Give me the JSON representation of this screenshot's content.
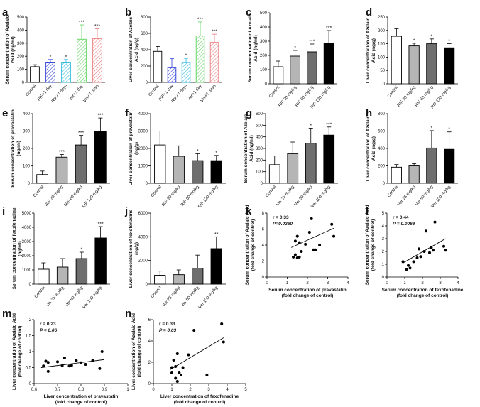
{
  "figure": {
    "width": 676,
    "height": 573
  },
  "chart_data": [
    {
      "id": "a",
      "type": "bar",
      "ylabel": "Serum concentration of Azelaic Acid (ng/ml)",
      "categories": [
        "Control",
        "RIF+1 day",
        "RIF+7 days",
        "Ver+1 day",
        "Ver+7 days"
      ],
      "values": [
        120,
        155,
        155,
        330,
        335
      ],
      "errors": [
        15,
        20,
        20,
        110,
        75
      ],
      "significance": [
        "",
        "*",
        "*",
        "***",
        "***"
      ],
      "styles": [
        "white",
        "blue-hatch",
        "cyan-hatch",
        "green-hatch",
        "red-hatch"
      ],
      "ylim": [
        0,
        500
      ],
      "yticks": [
        0,
        100,
        200,
        300,
        400,
        500
      ]
    },
    {
      "id": "b",
      "type": "bar",
      "ylabel": "Liver concentration of Azelaic Acid (ng/g)",
      "categories": [
        "Control",
        "RIF+1 day",
        "RIF+7 days",
        "Ver+1 day",
        "Ver+7 days"
      ],
      "values": [
        380,
        180,
        245,
        570,
        490
      ],
      "errors": [
        60,
        110,
        50,
        170,
        100
      ],
      "significance": [
        "",
        "",
        "*",
        "***",
        "***"
      ],
      "styles": [
        "white",
        "blue-hatch",
        "cyan-hatch",
        "green-hatch",
        "red-hatch"
      ],
      "ylim": [
        0,
        800
      ],
      "yticks": [
        0,
        200,
        400,
        600,
        800
      ]
    },
    {
      "id": "c",
      "type": "bar",
      "ylabel": "Serum concentration of Azelaic Acid (ng/ml)",
      "categories": [
        "Control",
        "RIF 30 mg/kg",
        "RIF 60 mg/kg",
        "RIF 120 mg/kg"
      ],
      "values": [
        120,
        195,
        225,
        285
      ],
      "errors": [
        40,
        40,
        55,
        90
      ],
      "significance": [
        "",
        "*",
        "***",
        "***"
      ],
      "styles": [
        "white",
        "gray-light",
        "gray-dark",
        "black"
      ],
      "ylim": [
        0,
        500
      ],
      "yticks": [
        0,
        100,
        200,
        300,
        400,
        500
      ]
    },
    {
      "id": "d",
      "type": "bar",
      "ylabel": "Liver concentration of Azelaic Acid (ng/g)",
      "categories": [
        "Control",
        "RIF 30 mg/kg",
        "RIF 60 mg/kg",
        "RIF 120 mg/kg"
      ],
      "values": [
        178,
        142,
        150,
        135
      ],
      "errors": [
        28,
        10,
        18,
        15
      ],
      "significance": [
        "",
        "*",
        "*",
        "*"
      ],
      "styles": [
        "white",
        "gray-light",
        "gray-dark",
        "black"
      ],
      "ylim": [
        0,
        250
      ],
      "yticks": [
        0,
        50,
        100,
        150,
        200,
        250
      ]
    },
    {
      "id": "e",
      "type": "bar",
      "ylabel": "Serum concentration of pravastatin (ng/ml)",
      "categories": [
        "Control",
        "RIF 30 mg/kg",
        "RIF 60 mg/kg",
        "RIF 120 mg/kg"
      ],
      "values": [
        50,
        150,
        220,
        300
      ],
      "errors": [
        20,
        15,
        55,
        75
      ],
      "significance": [
        "",
        "***",
        "***",
        "***"
      ],
      "styles": [
        "white",
        "gray-light",
        "gray-dark",
        "black"
      ],
      "ylim": [
        0,
        400
      ],
      "yticks": [
        0,
        100,
        200,
        300,
        400
      ]
    },
    {
      "id": "f",
      "type": "bar",
      "ylabel": "Liver concentration of pravastatin (ng/g)",
      "categories": [
        "Control",
        "RIF 30 mg/kg",
        "RIF 60 mg/kg",
        "RIF 120 mg/kg"
      ],
      "values": [
        2200,
        1550,
        1300,
        1300
      ],
      "errors": [
        800,
        600,
        400,
        300
      ],
      "significance": [
        "",
        "",
        "*",
        "*"
      ],
      "styles": [
        "white",
        "gray-light",
        "gray-dark",
        "black"
      ],
      "ylim": [
        0,
        4000
      ],
      "yticks": [
        0,
        1000,
        2000,
        3000,
        4000
      ]
    },
    {
      "id": "g",
      "type": "bar",
      "ylabel": "Serum concentration of Azelaic Acid (ng/ml)",
      "categories": [
        "Control",
        "Ver 25 mg/kg",
        "Ver 50 mg/kg",
        "Ver 100 mg/kg"
      ],
      "values": [
        160,
        255,
        345,
        415
      ],
      "errors": [
        75,
        100,
        130,
        70
      ],
      "significance": [
        "",
        "",
        "*",
        "***"
      ],
      "styles": [
        "white",
        "gray-light",
        "gray-dark",
        "black"
      ],
      "ylim": [
        0,
        600
      ],
      "yticks": [
        0,
        100,
        200,
        300,
        400,
        500,
        600
      ]
    },
    {
      "id": "h",
      "type": "bar",
      "ylabel": "Liver concentration of Azelaic Acid (ng/g)",
      "categories": [
        "Control",
        "Ver 25 mg/kg",
        "Ver 50 mg/kg",
        "Ver 100 mg/kg"
      ],
      "values": [
        185,
        200,
        405,
        390
      ],
      "errors": [
        30,
        25,
        200,
        200
      ],
      "significance": [
        "",
        "",
        "*",
        "*"
      ],
      "styles": [
        "white",
        "gray-light",
        "gray-dark",
        "black"
      ],
      "ylim": [
        0,
        800
      ],
      "yticks": [
        0,
        200,
        400,
        600,
        800
      ]
    },
    {
      "id": "i",
      "type": "bar",
      "ylabel": "Serum concentration of fexofenadine (ng/ml)",
      "categories": [
        "Control",
        "Ver 25 mg/kg",
        "Ver 50 mg/kg",
        "Ver 100 mg/kg"
      ],
      "values": [
        1050,
        1200,
        1800,
        3250
      ],
      "errors": [
        450,
        600,
        450,
        800
      ],
      "significance": [
        "",
        "",
        "*",
        "***"
      ],
      "styles": [
        "white",
        "gray-light",
        "gray-dark",
        "black"
      ],
      "ylim": [
        0,
        5000
      ],
      "yticks": [
        0,
        1000,
        2000,
        3000,
        4000,
        5000
      ]
    },
    {
      "id": "j",
      "type": "bar",
      "ylabel": "Liver concentration of fexofenadine (ng/g)",
      "categories": [
        "Control",
        "Ver 25 mg/kg",
        "Ver 50 mg/kg",
        "Ver 100 mg/kg"
      ],
      "values": [
        750,
        800,
        1350,
        3000
      ],
      "errors": [
        350,
        400,
        1100,
        1000
      ],
      "significance": [
        "",
        "",
        "",
        "**"
      ],
      "styles": [
        "white",
        "gray-light",
        "gray-dark",
        "black"
      ],
      "ylim": [
        0,
        6000
      ],
      "yticks": [
        0,
        2000,
        4000,
        6000
      ]
    },
    {
      "id": "k",
      "type": "scatter",
      "xlabel": "Serum concentration of pravastatin (fold change of control)",
      "ylabel": "Serum concentration of Azelaic Acid (fold change of control)",
      "r_text": "r = 0.33",
      "p_text": "P=0.0260",
      "xlim": [
        0,
        4
      ],
      "ylim": [
        0,
        8
      ],
      "xticks": [
        0,
        1,
        2,
        3,
        4
      ],
      "yticks": [
        0,
        2,
        4,
        6,
        8
      ],
      "points": [
        [
          1.3,
          2.5
        ],
        [
          1.4,
          4.5
        ],
        [
          1.5,
          5.1
        ],
        [
          1.6,
          4.3
        ],
        [
          1.7,
          3.2
        ],
        [
          1.4,
          2.8
        ],
        [
          1.5,
          2.4
        ],
        [
          1.6,
          2.5
        ],
        [
          1.9,
          4.1
        ],
        [
          2.1,
          5.6
        ],
        [
          2.2,
          7.3
        ],
        [
          2.3,
          3.4
        ],
        [
          2.4,
          3.4
        ],
        [
          2.6,
          4.0
        ],
        [
          3.2,
          6.6
        ],
        [
          3.3,
          5.1
        ]
      ],
      "fit": [
        [
          1.2,
          3.7
        ],
        [
          3.3,
          6.1
        ]
      ]
    },
    {
      "id": "l",
      "type": "scatter",
      "xlabel": "Serum concentration of fexofenadine (fold change of control)",
      "ylabel": "Serum concentration of Azelaic Acid (fold change of control)",
      "r_text": "r = 0.44",
      "p_text": "P = 0.0069",
      "xlim": [
        0,
        4
      ],
      "ylim": [
        0,
        5
      ],
      "xticks": [
        0,
        1,
        2,
        3,
        4
      ],
      "yticks": [
        0,
        1,
        2,
        3,
        4,
        5
      ],
      "points": [
        [
          0.9,
          1.2
        ],
        [
          1.1,
          0.6
        ],
        [
          1.2,
          0.9
        ],
        [
          1.3,
          0.7
        ],
        [
          1.5,
          1.2
        ],
        [
          1.7,
          1.5
        ],
        [
          1.8,
          2.2
        ],
        [
          1.9,
          1.6
        ],
        [
          2.1,
          2.0
        ],
        [
          2.2,
          3.6
        ],
        [
          2.4,
          1.9
        ],
        [
          2.5,
          2.3
        ],
        [
          2.6,
          2.1
        ],
        [
          2.7,
          4.3
        ],
        [
          3.2,
          2.4
        ],
        [
          3.3,
          2.1
        ]
      ],
      "fit": [
        [
          0.9,
          1.1
        ],
        [
          3.3,
          3.0
        ]
      ]
    },
    {
      "id": "m",
      "type": "scatter",
      "xlabel": "Liver concentration of pravastatin (fold change of control)",
      "ylabel": "Liver concentration of Azelaic Acid (fold change of control)",
      "r_text": "r = 0.23",
      "p_text": "P = 0.06",
      "xlim": [
        0.6,
        1.0
      ],
      "ylim": [
        0,
        2
      ],
      "xticks": [
        0.6,
        0.7,
        0.8,
        0.9,
        1.0
      ],
      "yticks": [
        0,
        0.5,
        1.0,
        1.5,
        2.0
      ],
      "points": [
        [
          0.64,
          0.55
        ],
        [
          0.65,
          0.7
        ],
        [
          0.66,
          0.38
        ],
        [
          0.66,
          0.66
        ],
        [
          0.7,
          0.68
        ],
        [
          0.72,
          0.56
        ],
        [
          0.73,
          0.8
        ],
        [
          0.75,
          0.55
        ],
        [
          0.76,
          0.57
        ],
        [
          0.78,
          0.72
        ],
        [
          0.8,
          0.65
        ],
        [
          0.82,
          0.6
        ],
        [
          0.85,
          0.72
        ],
        [
          0.88,
          0.47
        ],
        [
          0.89,
          1.0
        ]
      ],
      "fit": [
        [
          0.63,
          0.5
        ],
        [
          0.9,
          0.75
        ]
      ]
    },
    {
      "id": "n",
      "type": "scatter",
      "xlabel": "Liver concentration of fexofenadine (fold change of control)",
      "ylabel": "Liver concentration of Azelaic Acid (fold change of control)",
      "r_text": "r = 0.33",
      "p_text": "P = 0.03",
      "xlim": [
        0,
        5
      ],
      "ylim": [
        0,
        6
      ],
      "xticks": [
        0,
        1,
        2,
        3,
        4,
        5
      ],
      "yticks": [
        0,
        2,
        4,
        6
      ],
      "points": [
        [
          1.0,
          1.5
        ],
        [
          1.0,
          1.0
        ],
        [
          1.1,
          2.2
        ],
        [
          1.2,
          0.5
        ],
        [
          1.2,
          1.6
        ],
        [
          1.3,
          2.8
        ],
        [
          1.3,
          0.2
        ],
        [
          1.4,
          1.0
        ],
        [
          1.5,
          0.8
        ],
        [
          1.6,
          1.5
        ],
        [
          1.9,
          2.7
        ],
        [
          2.2,
          5.0
        ],
        [
          2.9,
          0.8
        ],
        [
          3.7,
          5.6
        ],
        [
          3.8,
          3.9
        ]
      ],
      "fit": [
        [
          0.9,
          1.3
        ],
        [
          3.8,
          4.3
        ]
      ]
    }
  ]
}
